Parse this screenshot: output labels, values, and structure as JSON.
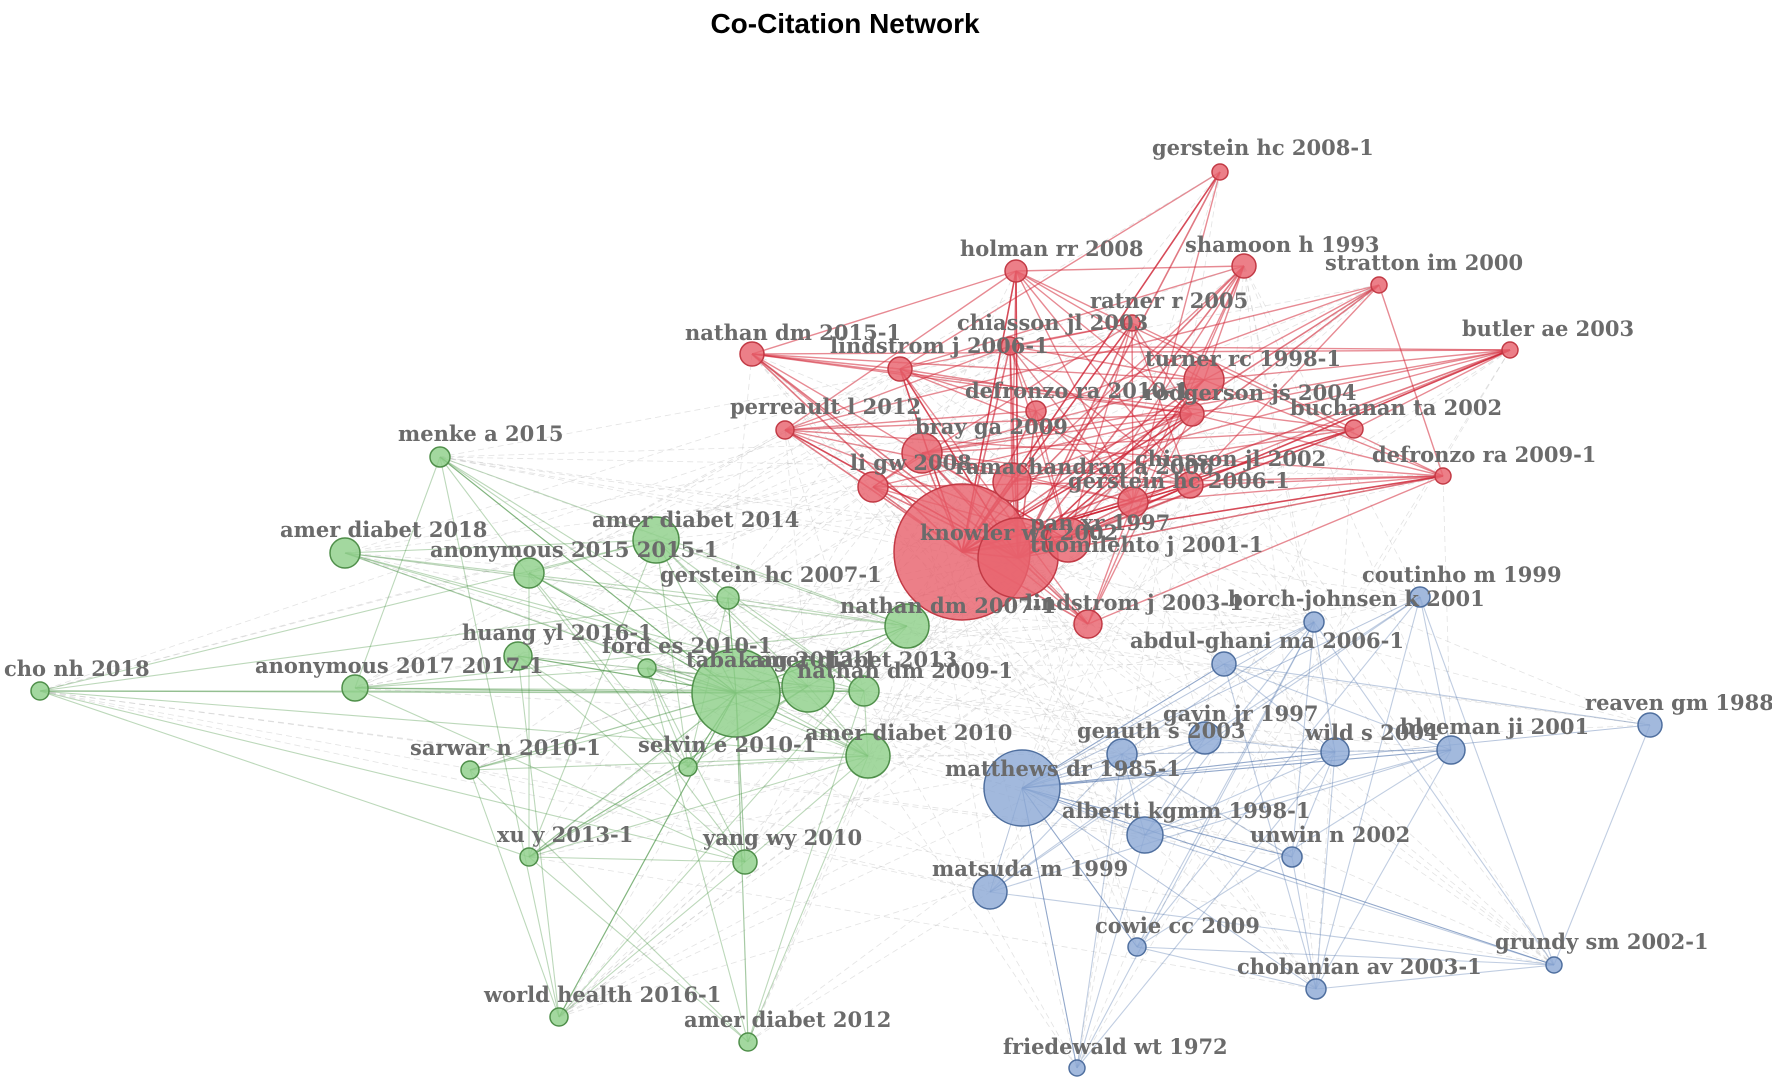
{
  "title": "Co-Citation Network",
  "colors": {
    "red": "#e8636e",
    "green": "#8fcf8a",
    "blue": "#8eaad6",
    "redStroke": "#c23a45",
    "greenStroke": "#4f8f4a",
    "blueStroke": "#4f6f9f"
  },
  "nodes": [
    {
      "id": "knowler",
      "label": "knowler wc 2002",
      "c": "red"
    },
    {
      "id": "tuomilehto",
      "label": "tuomilehto j 2001-1",
      "c": "red"
    },
    {
      "id": "pan97",
      "label": "pan xr 1997",
      "c": "red"
    },
    {
      "id": "gerstein2008",
      "label": "gerstein hc 2008-1",
      "c": "red"
    },
    {
      "id": "holman",
      "label": "holman rr 2008",
      "c": "red"
    },
    {
      "id": "shamoon",
      "label": "shamoon h 1993",
      "c": "red"
    },
    {
      "id": "stratton",
      "label": "stratton im 2000",
      "c": "red"
    },
    {
      "id": "ratner",
      "label": "ratner r 2005",
      "c": "red"
    },
    {
      "id": "chiasson2003",
      "label": "chiasson jl 2003",
      "c": "red"
    },
    {
      "id": "butler",
      "label": "butler ae 2003",
      "c": "red"
    },
    {
      "id": "nathan2015",
      "label": "nathan dm 2015-1",
      "c": "red"
    },
    {
      "id": "lindstrom2006",
      "label": "lindstrom j 2006-1",
      "c": "red"
    },
    {
      "id": "turner",
      "label": "turner rc 1998-1",
      "c": "red"
    },
    {
      "id": "defronzo2010",
      "label": "defronzo ra 2010-1",
      "c": "red"
    },
    {
      "id": "rodgerson",
      "label": "rodgerson js 2004",
      "c": "red"
    },
    {
      "id": "perreault",
      "label": "perreault l 2012",
      "c": "red"
    },
    {
      "id": "buchanan",
      "label": "buchanan ta 2002",
      "c": "red"
    },
    {
      "id": "bray",
      "label": "bray ga 2009",
      "c": "red"
    },
    {
      "id": "defronzo2009",
      "label": "defronzo ra 2009-1",
      "c": "red"
    },
    {
      "id": "ligw",
      "label": "li gw 2008",
      "c": "red"
    },
    {
      "id": "ramachandran",
      "label": "ramachandran a 2006",
      "c": "red"
    },
    {
      "id": "chiasson2002",
      "label": "chiasson jl 2002",
      "c": "red"
    },
    {
      "id": "gerstein2006",
      "label": "gerstein hc 2006-1",
      "c": "red"
    },
    {
      "id": "lindstrom2003",
      "label": "lindstrom j 2003-1",
      "c": "red"
    },
    {
      "id": "menke",
      "label": "menke a 2015",
      "c": "green"
    },
    {
      "id": "amer2018",
      "label": "amer diabet 2018",
      "c": "green"
    },
    {
      "id": "amer2014",
      "label": "amer diabet 2014",
      "c": "green"
    },
    {
      "id": "anon2015",
      "label": "anonymous 2015 2015-1",
      "c": "green"
    },
    {
      "id": "gerstein2007",
      "label": "gerstein hc 2007-1",
      "c": "green"
    },
    {
      "id": "nathan2007",
      "label": "nathan dm 2007-1",
      "c": "green"
    },
    {
      "id": "huang",
      "label": "huang yl 2016-1",
      "c": "green"
    },
    {
      "id": "ford",
      "label": "ford es 2010-1",
      "c": "green"
    },
    {
      "id": "tabak",
      "label": "tabak ag 2012-1",
      "c": "green"
    },
    {
      "id": "amer2013",
      "label": "amer diabet 2013",
      "c": "green"
    },
    {
      "id": "nathan2009",
      "label": "nathan dm 2009-1",
      "c": "green"
    },
    {
      "id": "cho",
      "label": "cho nh 2018",
      "c": "green"
    },
    {
      "id": "anon2017",
      "label": "anonymous 2017 2017-1",
      "c": "green"
    },
    {
      "id": "sarwar",
      "label": "sarwar n 2010-1",
      "c": "green"
    },
    {
      "id": "selvin",
      "label": "selvin e 2010-1",
      "c": "green"
    },
    {
      "id": "amer2010",
      "label": "amer diabet 2010",
      "c": "green"
    },
    {
      "id": "xuy",
      "label": "xu y 2013-1",
      "c": "green"
    },
    {
      "id": "yang",
      "label": "yang wy 2010",
      "c": "green"
    },
    {
      "id": "world",
      "label": "world health 2016-1",
      "c": "green"
    },
    {
      "id": "amer2012",
      "label": "amer diabet 2012",
      "c": "green"
    },
    {
      "id": "coutinho",
      "label": "coutinho m 1999",
      "c": "blue"
    },
    {
      "id": "borch",
      "label": "borch-johnsen k 2001",
      "c": "blue"
    },
    {
      "id": "abdul",
      "label": "abdul-ghani ma 2006-1",
      "c": "blue"
    },
    {
      "id": "reaven",
      "label": "reaven gm 1988-1",
      "c": "blue"
    },
    {
      "id": "gavin",
      "label": "gavin jr 1997",
      "c": "blue"
    },
    {
      "id": "genuth",
      "label": "genuth s 2003",
      "c": "blue"
    },
    {
      "id": "wild",
      "label": "wild s 2004",
      "c": "blue"
    },
    {
      "id": "bleeman",
      "label": "bleeman ji 2001",
      "c": "blue"
    },
    {
      "id": "matthews",
      "label": "matthews dr 1985-1",
      "c": "blue"
    },
    {
      "id": "alberti",
      "label": "alberti kgmm 1998-1",
      "c": "blue"
    },
    {
      "id": "unwin",
      "label": "unwin n 2002",
      "c": "blue"
    },
    {
      "id": "matsuda",
      "label": "matsuda m 1999",
      "c": "blue"
    },
    {
      "id": "cowie",
      "label": "cowie cc 2009",
      "c": "blue"
    },
    {
      "id": "grundy",
      "label": "grundy sm 2002-1",
      "c": "blue"
    },
    {
      "id": "chobanian",
      "label": "chobanian av 2003-1",
      "c": "blue"
    },
    {
      "id": "friedewald",
      "label": "friedewald wt 1972",
      "c": "blue"
    }
  ]
}
